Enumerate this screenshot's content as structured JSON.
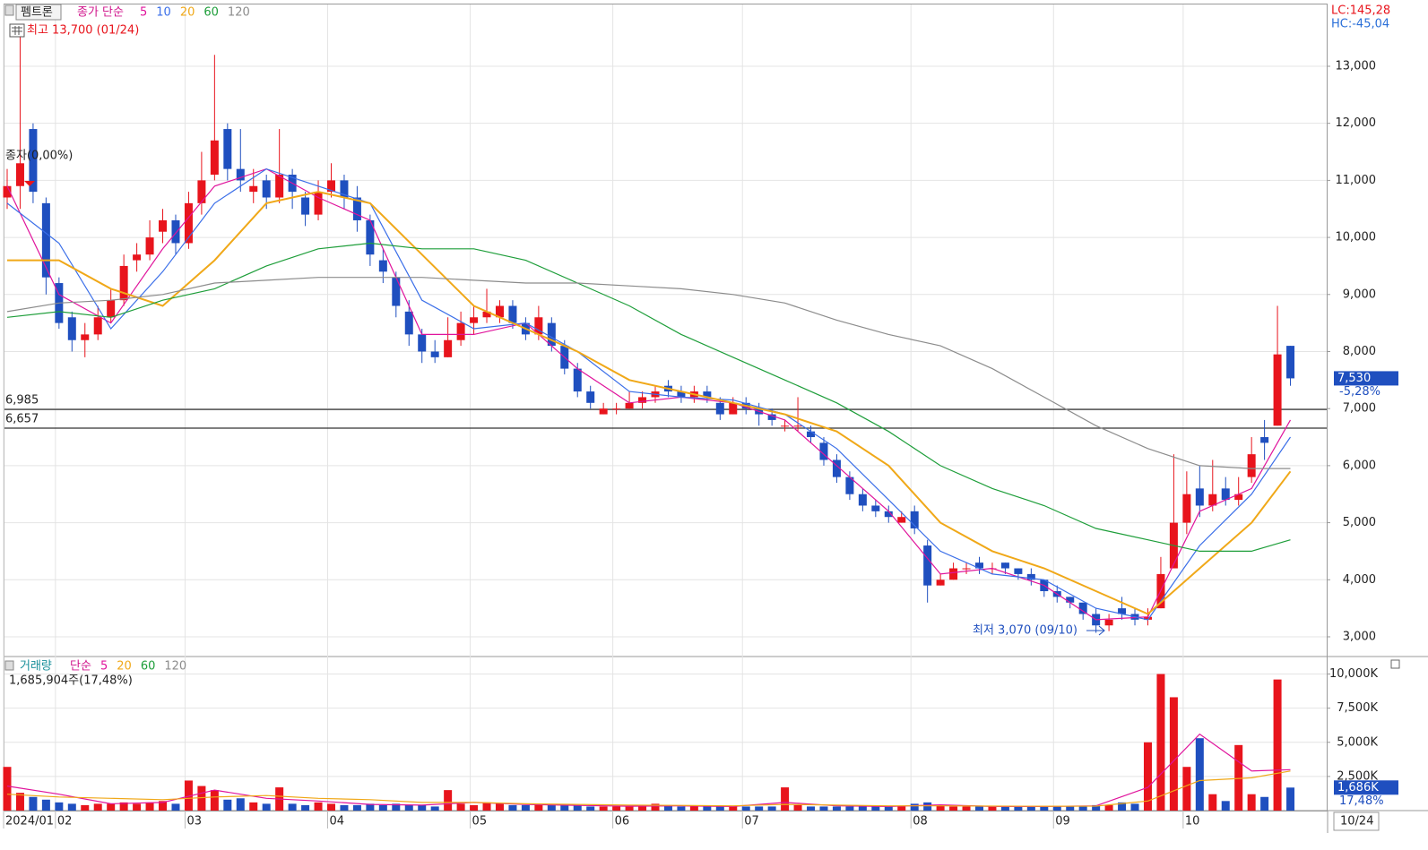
{
  "chart_data": {
    "type": "candlestick",
    "symbol": "펨트론",
    "ma_label": "종가 단순",
    "high_note": "최고 13,700 (01/24)",
    "low_note": "최저 3,070 (09/10)",
    "ratio_note": "종자(0,00%)",
    "lc": "LC:145,28",
    "hc": "HC:-45,04",
    "last_date": "10/24",
    "price_label": {
      "value": 7530,
      "label": "7,530"
    },
    "change_label": "-5,28%",
    "up_color": "#e8141c",
    "down_color": "#1f4fbf",
    "grid": true,
    "categories": [
      "2024/01",
      null,
      null,
      null,
      "02",
      null,
      null,
      null,
      null,
      null,
      null,
      null,
      null,
      null,
      "03",
      null,
      null,
      null,
      null,
      null,
      null,
      null,
      null,
      null,
      null,
      "04",
      null,
      null,
      null,
      null,
      null,
      null,
      null,
      null,
      null,
      null,
      "05",
      null,
      null,
      null,
      null,
      null,
      null,
      null,
      null,
      null,
      null,
      "06",
      null,
      null,
      null,
      null,
      null,
      null,
      null,
      null,
      null,
      "07",
      null,
      null,
      null,
      null,
      null,
      null,
      null,
      null,
      null,
      null,
      null,
      null,
      "08",
      null,
      null,
      null,
      null,
      null,
      null,
      null,
      null,
      null,
      null,
      "09",
      null,
      null,
      null,
      null,
      null,
      null,
      null,
      null,
      null,
      "10",
      null,
      null,
      null,
      null,
      null,
      null,
      null,
      null
    ],
    "open": [
      10700,
      10900,
      11900,
      10600,
      9200,
      8600,
      8200,
      8300,
      8600,
      8900,
      9600,
      9700,
      10100,
      10300,
      9900,
      10600,
      11100,
      11900,
      11200,
      10800,
      11000,
      10700,
      11100,
      10700,
      10400,
      10800,
      11000,
      10700,
      10300,
      9600,
      9300,
      8700,
      8300,
      8000,
      7900,
      8200,
      8500,
      8600,
      8600,
      8800,
      8500,
      8300,
      8500,
      8100,
      7700,
      7300,
      6900,
      7000,
      7000,
      7100,
      7200,
      7400,
      7300,
      7200,
      7300,
      7100,
      6900,
      7100,
      7000,
      6900,
      6700,
      6700,
      6600,
      6400,
      6100,
      5800,
      5500,
      5300,
      5200,
      5000,
      5200,
      4600,
      3900,
      4000,
      4200,
      4300,
      4200,
      4300,
      4200,
      4100,
      4000,
      3800,
      3700,
      3600,
      3400,
      3200,
      3500,
      3400,
      3300,
      3500,
      4200,
      5000,
      5600,
      5300,
      5600,
      5400,
      5800,
      6500,
      6700,
      8100
    ],
    "high": [
      11200,
      13700,
      12000,
      10700,
      9300,
      8700,
      8500,
      8800,
      9100,
      9700,
      9900,
      10300,
      10500,
      10400,
      10800,
      11500,
      13200,
      12000,
      11900,
      11200,
      11100,
      11900,
      11200,
      10800,
      11000,
      11300,
      11100,
      10900,
      10400,
      9800,
      9400,
      8900,
      8400,
      8200,
      8600,
      8700,
      8800,
      9100,
      8900,
      8900,
      8600,
      8800,
      8600,
      8200,
      7800,
      7400,
      7100,
      7100,
      7300,
      7300,
      7400,
      7500,
      7400,
      7400,
      7400,
      7200,
      7200,
      7200,
      7100,
      7000,
      6800,
      7200,
      6700,
      6500,
      6200,
      5900,
      5600,
      5400,
      5300,
      5200,
      5300,
      4700,
      4100,
      4300,
      4300,
      4400,
      4300,
      4300,
      4200,
      4200,
      4000,
      3900,
      3700,
      3600,
      3500,
      3400,
      3700,
      3500,
      3500,
      4400,
      6200,
      5900,
      6000,
      6100,
      5800,
      5800,
      6500,
      6800,
      8800,
      8100
    ],
    "low": [
      10500,
      10500,
      10600,
      9000,
      8400,
      8000,
      7900,
      8200,
      8500,
      8800,
      9400,
      9600,
      9900,
      9700,
      9800,
      10400,
      11000,
      11000,
      10800,
      10600,
      10500,
      10600,
      10500,
      10200,
      10300,
      10700,
      10500,
      10100,
      9500,
      9200,
      8600,
      8100,
      7800,
      7800,
      7900,
      8100,
      8300,
      8500,
      8500,
      8400,
      8200,
      8200,
      8000,
      7600,
      7200,
      7000,
      6900,
      6900,
      7000,
      7000,
      7100,
      7200,
      7100,
      7100,
      7100,
      6800,
      6900,
      6900,
      6700,
      6700,
      6600,
      6600,
      6400,
      6000,
      5700,
      5400,
      5200,
      5100,
      5000,
      5000,
      4800,
      3600,
      3900,
      4000,
      4100,
      4100,
      4100,
      4100,
      4000,
      3900,
      3700,
      3600,
      3500,
      3300,
      3070,
      3100,
      3300,
      3200,
      3200,
      3500,
      4200,
      4800,
      5100,
      5200,
      5300,
      5300,
      5700,
      6100,
      6700,
      7400
    ],
    "close": [
      10900,
      11300,
      10800,
      9300,
      8500,
      8200,
      8300,
      8600,
      8900,
      9500,
      9700,
      10000,
      10300,
      9900,
      10600,
      11000,
      11700,
      11200,
      11000,
      10900,
      10700,
      11100,
      10800,
      10400,
      10800,
      11000,
      10700,
      10300,
      9700,
      9400,
      8800,
      8300,
      8000,
      7900,
      8200,
      8500,
      8600,
      8700,
      8800,
      8500,
      8300,
      8600,
      8100,
      7700,
      7300,
      7100,
      7000,
      7000,
      7100,
      7200,
      7300,
      7300,
      7200,
      7300,
      7200,
      6900,
      7100,
      7000,
      6900,
      6800,
      6700,
      6700,
      6500,
      6100,
      5800,
      5500,
      5300,
      5200,
      5100,
      5100,
      4900,
      3900,
      4000,
      4200,
      4200,
      4200,
      4200,
      4200,
      4100,
      4000,
      3800,
      3700,
      3600,
      3400,
      3200,
      3300,
      3400,
      3300,
      3350,
      4100,
      5000,
      5500,
      5300,
      5500,
      5400,
      5500,
      6200,
      6400,
      7950,
      7530
    ],
    "ylim": [
      2670,
      14083
    ],
    "yticks": [
      {
        "value": 3000,
        "label": "3,000"
      },
      {
        "value": 4000,
        "label": "4,000"
      },
      {
        "value": 5000,
        "label": "5,000"
      },
      {
        "value": 6000,
        "label": "6,000"
      },
      {
        "value": 7000,
        "label": "7,000"
      },
      {
        "value": 8000,
        "label": "8,000"
      },
      {
        "value": 9000,
        "label": "9,000"
      },
      {
        "value": 10000,
        "label": "10,000"
      },
      {
        "value": 11000,
        "label": "11,000"
      },
      {
        "value": 12000,
        "label": "12,000"
      },
      {
        "value": 13000,
        "label": "13,000"
      }
    ],
    "hlines": [
      {
        "value": 6985,
        "label": "6,985"
      },
      {
        "value": 6657,
        "label": "6,657"
      }
    ],
    "ma_x": [
      0,
      4,
      8,
      12,
      16,
      20,
      24,
      28,
      32,
      36,
      40,
      44,
      48,
      52,
      56,
      60,
      64,
      68,
      72,
      76,
      80,
      84,
      88,
      92,
      96,
      99
    ],
    "moving_averages": [
      {
        "name": "5",
        "color": "#e0149c",
        "values": [
          10900,
          9000,
          8500,
          9800,
          10900,
          11200,
          10700,
          10300,
          8300,
          8300,
          8500,
          7700,
          7100,
          7200,
          7100,
          6800,
          6000,
          5200,
          4100,
          4200,
          3900,
          3300,
          3350,
          5200,
          5600,
          6800
        ]
      },
      {
        "name": "10",
        "color": "#3a6ee8",
        "values": [
          10600,
          9900,
          8400,
          9400,
          10600,
          11200,
          10900,
          10600,
          8900,
          8400,
          8500,
          8000,
          7300,
          7200,
          7150,
          6900,
          6300,
          5400,
          4500,
          4100,
          4000,
          3500,
          3300,
          4600,
          5500,
          6500
        ]
      },
      {
        "name": "20",
        "color": "#f0a818",
        "values": [
          9600,
          9600,
          9100,
          8800,
          9600,
          10600,
          10800,
          10600,
          9700,
          8800,
          8400,
          8000,
          7500,
          7300,
          7100,
          6900,
          6600,
          6000,
          5000,
          4500,
          4200,
          3800,
          3400,
          4200,
          5000,
          5900
        ]
      },
      {
        "name": "60",
        "color": "#1e9e3a",
        "values": [
          8600,
          8700,
          8600,
          8900,
          9100,
          9500,
          9800,
          9900,
          9800,
          9800,
          9600,
          9200,
          8800,
          8300,
          7900,
          7500,
          7100,
          6600,
          6000,
          5600,
          5300,
          4900,
          4700,
          4500,
          4500,
          4700
        ]
      },
      {
        "name": "120",
        "color": "#8c8c8c",
        "values": [
          8700,
          8850,
          8900,
          9000,
          9200,
          9250,
          9300,
          9300,
          9300,
          9250,
          9200,
          9200,
          9150,
          9100,
          9000,
          8850,
          8550,
          8300,
          8100,
          7700,
          7200,
          6700,
          6300,
          6000,
          5950,
          5950
        ]
      }
    ],
    "volume_title": "거래량",
    "volume_ma_label": "단순",
    "volume_note": "1,685,904주(17,48%)",
    "volume_label": {
      "value": 1686,
      "label": "1,686K"
    },
    "volume_ratio": "17,48%",
    "volume": [
      3200,
      1300,
      1000,
      800,
      600,
      500,
      400,
      500,
      500,
      600,
      500,
      600,
      700,
      500,
      2200,
      1800,
      1500,
      800,
      900,
      600,
      500,
      1700,
      500,
      400,
      600,
      500,
      400,
      400,
      500,
      400,
      500,
      400,
      400,
      300,
      1500,
      500,
      400,
      600,
      500,
      400,
      400,
      500,
      400,
      400,
      400,
      300,
      300,
      300,
      300,
      400,
      500,
      400,
      300,
      300,
      300,
      300,
      300,
      300,
      300,
      300,
      1700,
      400,
      300,
      300,
      300,
      300,
      300,
      300,
      300,
      300,
      500,
      600,
      400,
      300,
      300,
      300,
      300,
      300,
      300,
      300,
      300,
      300,
      300,
      300,
      400,
      400,
      600,
      500,
      5000,
      10000,
      8300,
      3200,
      5300,
      1200,
      700,
      4800,
      1200,
      1000,
      9600,
      1686
    ],
    "vol_ylim": [
      0,
      11150
    ],
    "vol_yticks": [
      {
        "value": 2500,
        "label": "2,500K"
      },
      {
        "value": 5000,
        "label": "5,000K"
      },
      {
        "value": 7500,
        "label": "7,500K"
      },
      {
        "value": 10000,
        "label": "10,000K"
      }
    ],
    "volume_moving_averages": [
      {
        "name": "5",
        "color": "#e0149c",
        "values": [
          1800,
          1200,
          500,
          600,
          1500,
          900,
          700,
          450,
          400,
          600,
          450,
          380,
          320,
          350,
          300,
          600,
          350,
          300,
          420,
          300,
          300,
          350,
          1700,
          5600,
          2900,
          3000
        ]
      },
      {
        "name": "20",
        "color": "#f0a818",
        "values": [
          1200,
          1000,
          900,
          800,
          1000,
          1100,
          900,
          800,
          600,
          600,
          500,
          450,
          400,
          380,
          350,
          450,
          400,
          350,
          350,
          330,
          320,
          330,
          700,
          2200,
          2400,
          2900
        ]
      }
    ],
    "volume_legend_more": [
      {
        "name": "60",
        "color": "#1e9e3a"
      },
      {
        "name": "120",
        "color": "#8c8c8c"
      }
    ]
  }
}
